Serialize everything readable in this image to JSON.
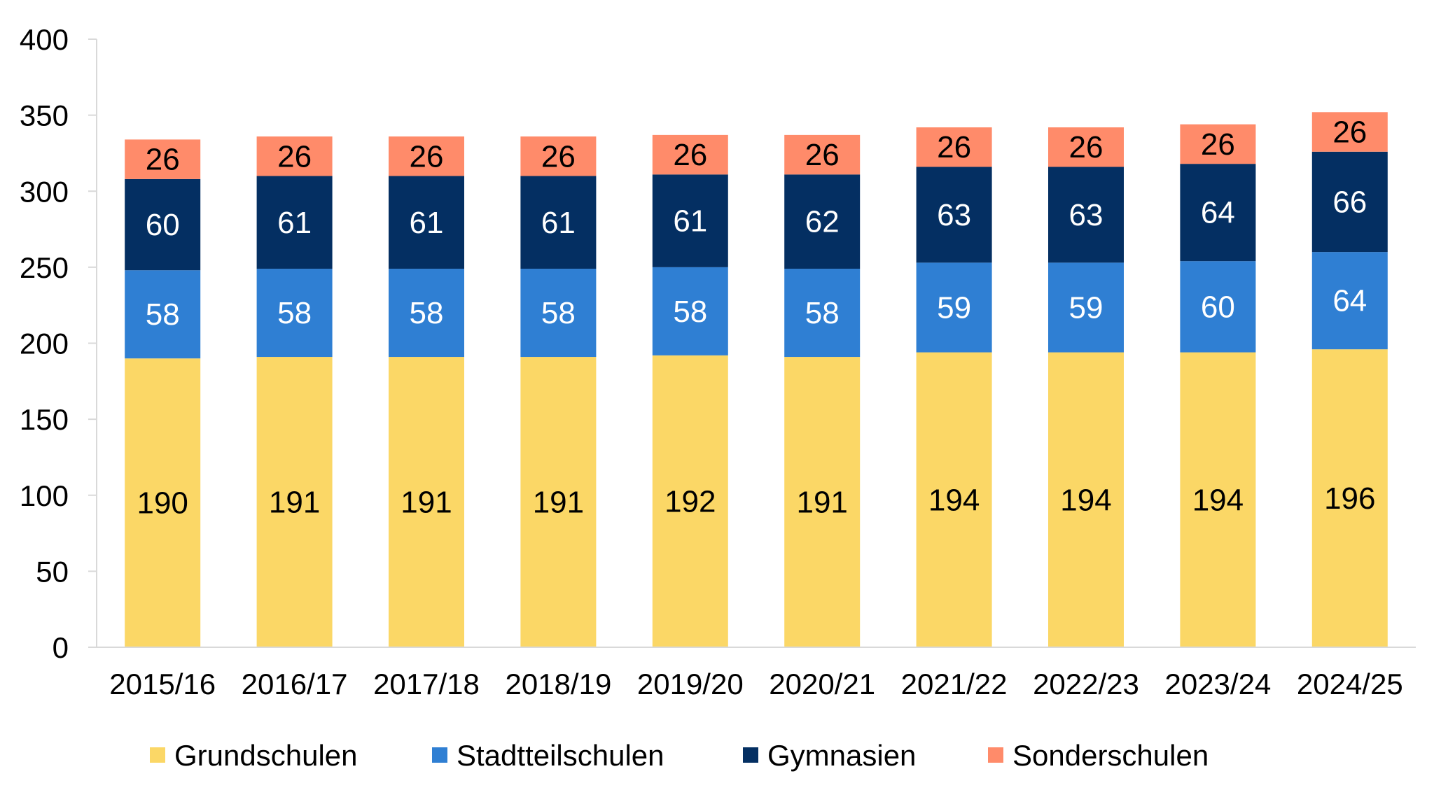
{
  "chart_data": {
    "type": "bar",
    "stacked": true,
    "categories": [
      "2015/16",
      "2016/17",
      "2017/18",
      "2018/19",
      "2019/20",
      "2020/21",
      "2021/22",
      "2022/23",
      "2023/24",
      "2024/25"
    ],
    "series": [
      {
        "name": "Grundschulen",
        "color": "#FBD766",
        "label_color": "#000000",
        "values": [
          190,
          191,
          191,
          191,
          192,
          191,
          194,
          194,
          194,
          196
        ]
      },
      {
        "name": "Stadtteilschulen",
        "color": "#2F7FD3",
        "label_color": "#FFFFFF",
        "values": [
          58,
          58,
          58,
          58,
          58,
          58,
          59,
          59,
          60,
          64
        ]
      },
      {
        "name": "Gymnasien",
        "color": "#042F62",
        "label_color": "#FFFFFF",
        "values": [
          60,
          61,
          61,
          61,
          61,
          62,
          63,
          63,
          64,
          66
        ]
      },
      {
        "name": "Sonderschulen",
        "color": "#FF8B6A",
        "label_color": "#000000",
        "values": [
          26,
          26,
          26,
          26,
          26,
          26,
          26,
          26,
          26,
          26
        ]
      }
    ],
    "title": "",
    "xlabel": "",
    "ylabel": "",
    "ylim": [
      0,
      400
    ],
    "yticks": [
      0,
      50,
      100,
      150,
      200,
      250,
      300,
      350,
      400
    ],
    "grid": false,
    "legend": "bottom"
  }
}
